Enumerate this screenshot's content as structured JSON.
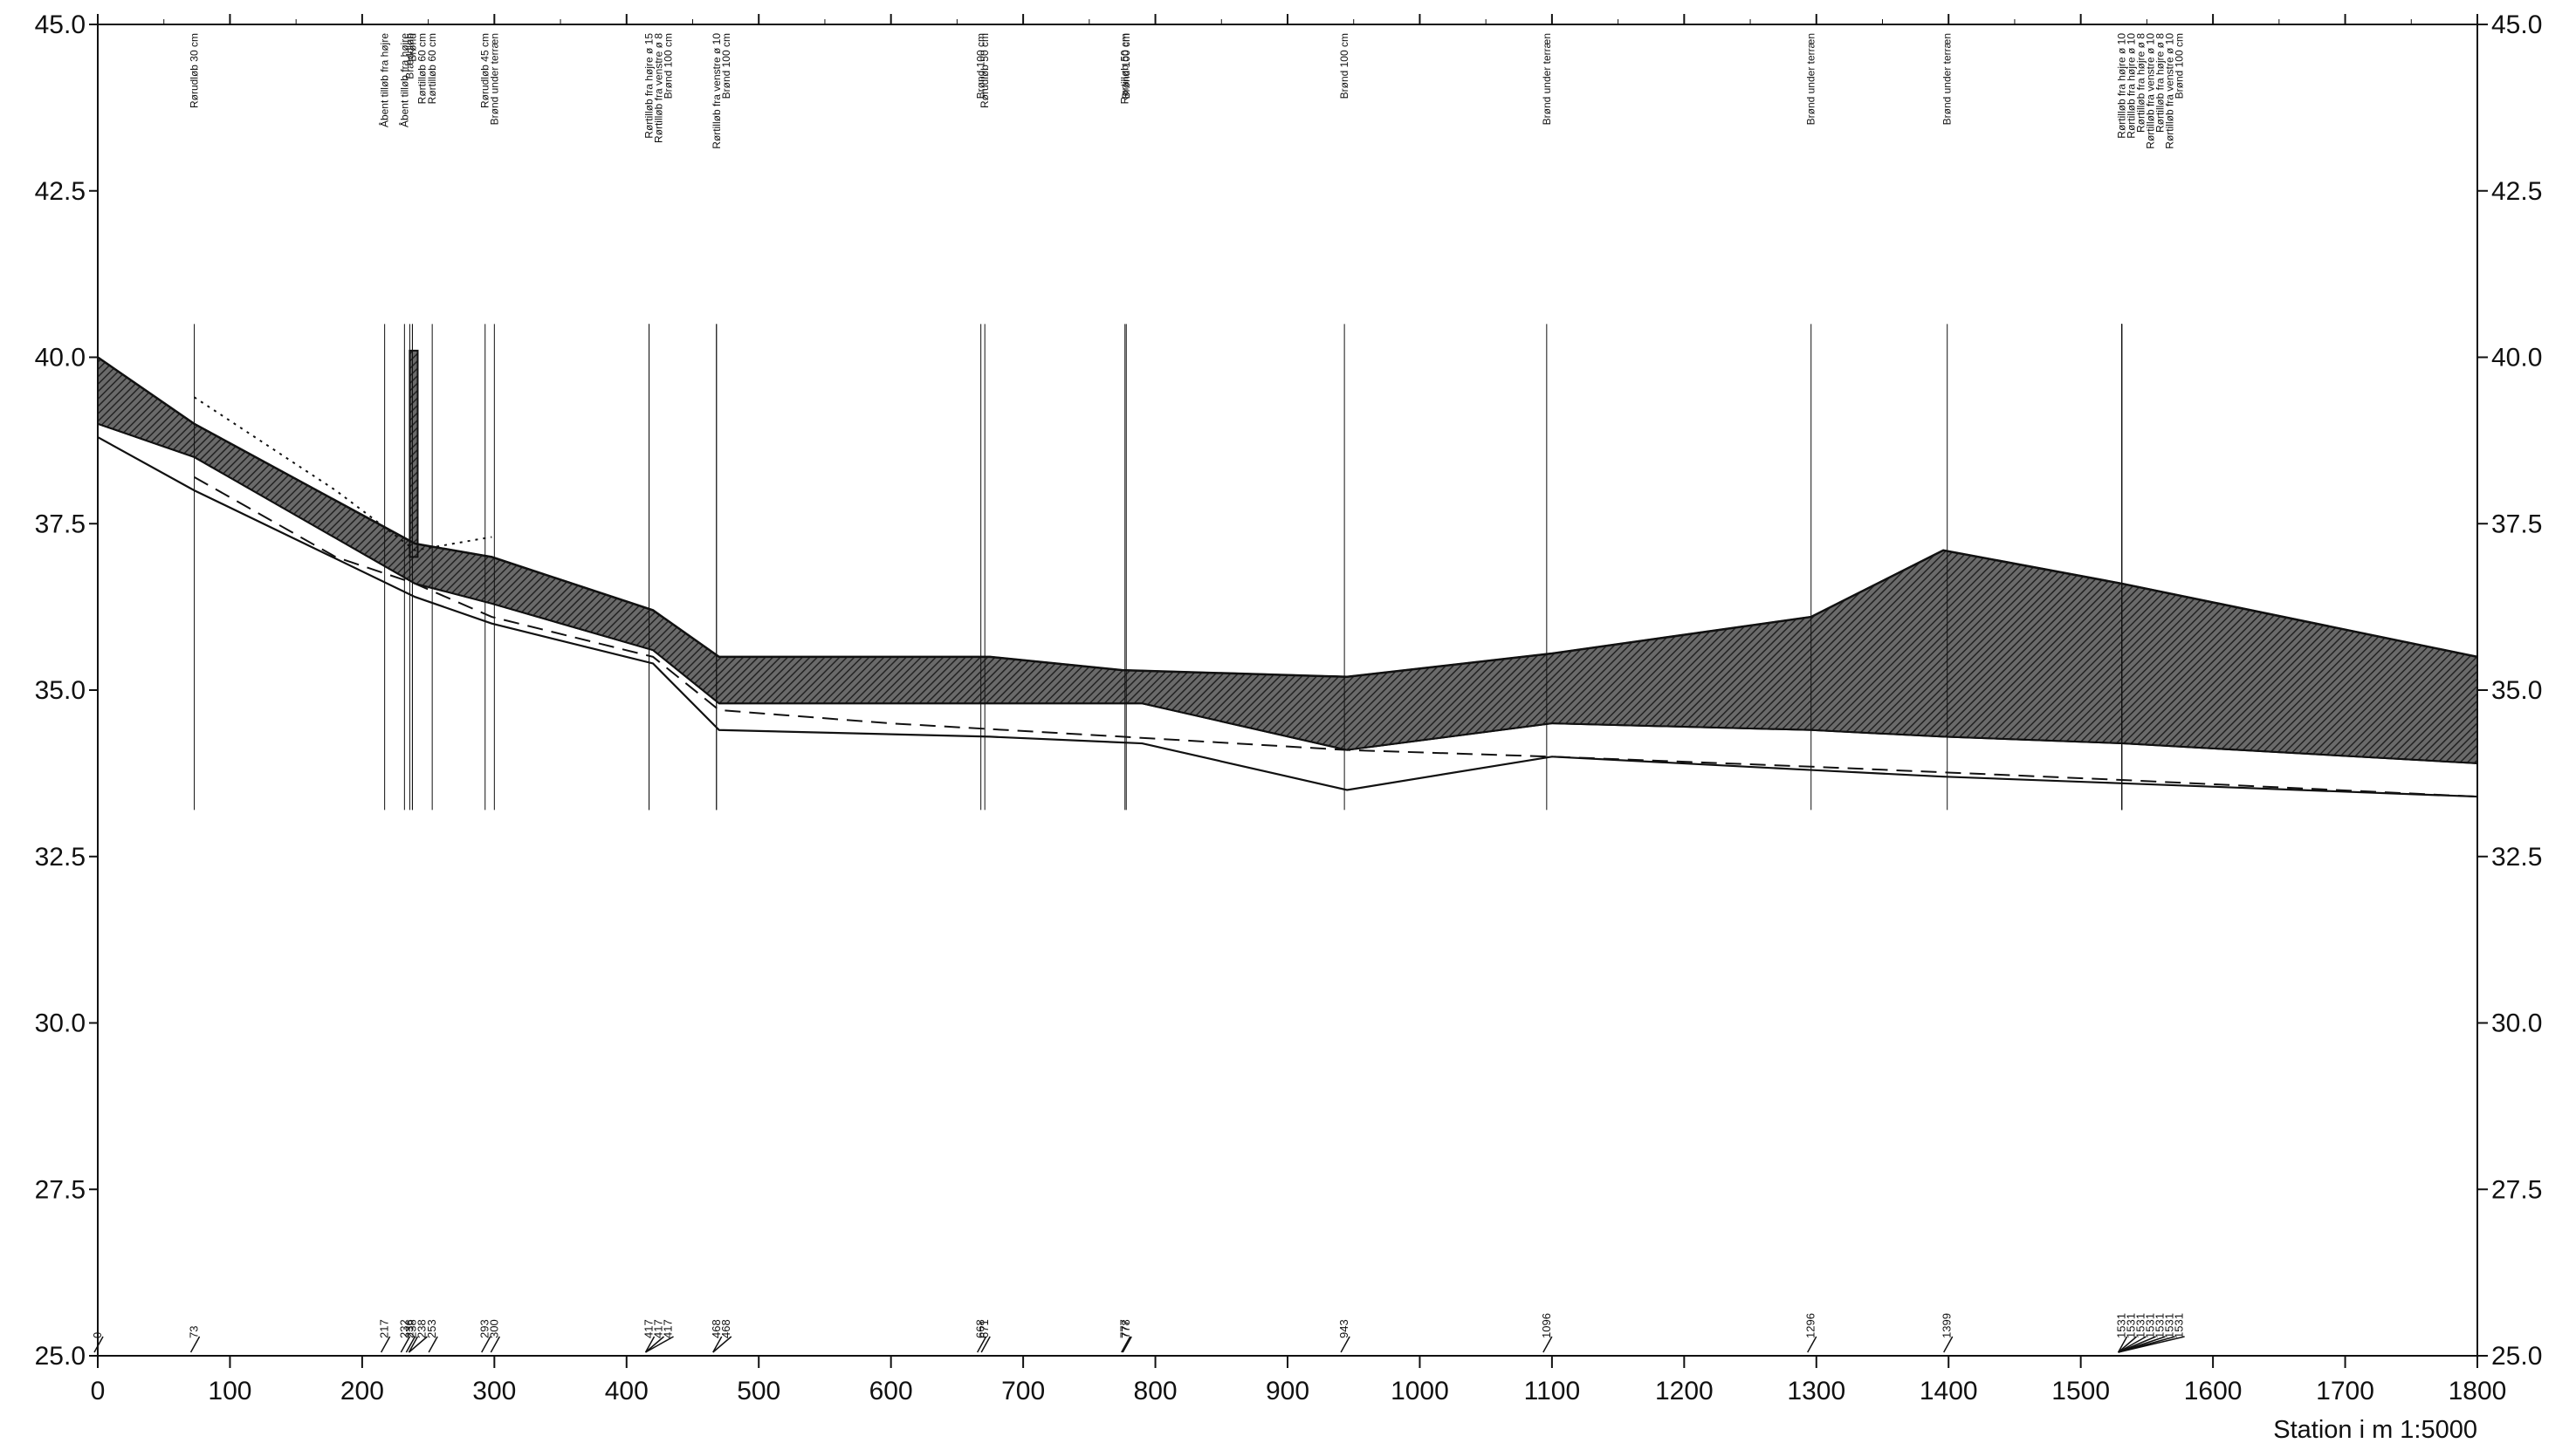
{
  "chart_data": {
    "type": "line",
    "xlabel": "Station i m  1:5000",
    "xlim": [
      0,
      1800
    ],
    "ylim": [
      25.0,
      45.0
    ],
    "x_ticks": [
      "0",
      "100",
      "200",
      "300",
      "400",
      "500",
      "600",
      "700",
      "800",
      "900",
      "1000",
      "1100",
      "1200",
      "1300",
      "1400",
      "1500",
      "1600",
      "1700",
      "1800"
    ],
    "y_ticks": [
      "25.0",
      "27.5",
      "30.0",
      "32.5",
      "35.0",
      "37.5",
      "40.0",
      "42.5",
      "45.0"
    ],
    "series": [
      {
        "style": "terrain-top",
        "points": [
          [
            0,
            40.0
          ],
          [
            73,
            39.0
          ],
          [
            73,
            39.0
          ],
          [
            240,
            37.2
          ],
          [
            240,
            37.2
          ],
          [
            298,
            37.0
          ],
          [
            298,
            37.0
          ],
          [
            420,
            36.2
          ],
          [
            470,
            35.5
          ],
          [
            675,
            35.5
          ],
          [
            675,
            35.5
          ],
          [
            775,
            35.3
          ],
          [
            945,
            35.2
          ],
          [
            1100,
            35.55
          ],
          [
            1296,
            36.1
          ],
          [
            1396,
            37.1
          ],
          [
            1531,
            36.6
          ],
          [
            1800,
            35.5
          ]
        ]
      },
      {
        "style": "pipe-top",
        "points": [
          [
            0,
            39.0
          ],
          [
            73,
            38.5
          ],
          [
            240,
            36.6
          ],
          [
            298,
            36.3
          ],
          [
            420,
            35.6
          ],
          [
            470,
            34.8
          ],
          [
            675,
            34.8
          ],
          [
            790,
            34.8
          ],
          [
            945,
            34.1
          ],
          [
            1100,
            34.5
          ],
          [
            1296,
            34.4
          ],
          [
            1396,
            34.3
          ],
          [
            1531,
            34.2
          ],
          [
            1800,
            33.9
          ]
        ]
      },
      {
        "style": "pipe-invert",
        "points": [
          [
            0,
            38.8
          ],
          [
            73,
            38.0
          ],
          [
            240,
            36.4
          ],
          [
            298,
            36.0
          ],
          [
            420,
            35.4
          ],
          [
            470,
            34.4
          ],
          [
            675,
            34.3
          ],
          [
            790,
            34.2
          ],
          [
            945,
            33.5
          ],
          [
            1100,
            34.0
          ],
          [
            1296,
            33.8
          ],
          [
            1396,
            33.7
          ],
          [
            1531,
            33.6
          ],
          [
            1800,
            33.4
          ]
        ]
      },
      {
        "style": "dashed",
        "points": [
          [
            73,
            38.2
          ],
          [
            180,
            37.0
          ],
          [
            240,
            36.6
          ],
          [
            298,
            36.1
          ],
          [
            420,
            35.5
          ],
          [
            470,
            34.7
          ],
          [
            600,
            34.5
          ],
          [
            775,
            34.3
          ],
          [
            945,
            34.1
          ],
          [
            1100,
            34.0
          ],
          [
            1296,
            33.85
          ],
          [
            1531,
            33.65
          ],
          [
            1800,
            33.4
          ]
        ]
      },
      {
        "style": "dotted",
        "points": [
          [
            73,
            39.4
          ],
          [
            180,
            38.0
          ],
          [
            240,
            37.1
          ],
          [
            298,
            37.3
          ]
        ]
      }
    ],
    "manholes": [
      {
        "station": 0,
        "label": "0",
        "desc": ""
      },
      {
        "station": 73,
        "label": "73",
        "desc": "Rørudløb 30 cm"
      },
      {
        "station": 217,
        "label": "217",
        "desc": "Åbent tilløb fra højre"
      },
      {
        "station": 232,
        "label": "232",
        "desc": "Åbent tilløb fra højre"
      },
      {
        "station": 236,
        "label": "236",
        "desc": "Bræddløb"
      },
      {
        "station": 238,
        "label": "238",
        "desc": "Brønd"
      },
      {
        "station": 238,
        "label": "238",
        "desc": "Rørtilløb 60 cm"
      },
      {
        "station": 253,
        "label": "253",
        "desc": "Rørtilløb 60 cm"
      },
      {
        "station": 293,
        "label": "293",
        "desc": "Rørudløb 45 cm"
      },
      {
        "station": 300,
        "label": "300",
        "desc": "Brønd under terræn"
      },
      {
        "station": 417,
        "label": "417",
        "desc": "Rørtilløb fra højre ø 15"
      },
      {
        "station": 417,
        "label": "417",
        "desc": "Rørtilløb fra venstre ø 8"
      },
      {
        "station": 417,
        "label": "417",
        "desc": "Brønd 100 cm"
      },
      {
        "station": 468,
        "label": "468",
        "desc": "Rørtilløb fra venstre ø 10"
      },
      {
        "station": 468,
        "label": "468",
        "desc": "Brønd 100 cm"
      },
      {
        "station": 668,
        "label": "668",
        "desc": "Brønd 100 cm"
      },
      {
        "station": 671,
        "label": "671",
        "desc": "Rørudløb 50 cm"
      },
      {
        "station": 777,
        "label": "777",
        "desc": "Rørtilløb 50 cm"
      },
      {
        "station": 778,
        "label": "778",
        "desc": "Brønd 100 cm"
      },
      {
        "station": 943,
        "label": "943",
        "desc": "Brønd 100 cm"
      },
      {
        "station": 1096,
        "label": "1096",
        "desc": "Brønd under terræn"
      },
      {
        "station": 1296,
        "label": "1296",
        "desc": "Brønd under terræn"
      },
      {
        "station": 1399,
        "label": "1399",
        "desc": "Brønd under terræn"
      },
      {
        "station": 1531,
        "label": "1531",
        "desc": "Rørtilløb fra højre ø 10"
      },
      {
        "station": 1531,
        "label": "1531",
        "desc": "Rørtilløb fra højre ø 10"
      },
      {
        "station": 1531,
        "label": "1531",
        "desc": "Rørtilløb fra højre ø 8"
      },
      {
        "station": 1531,
        "label": "1531",
        "desc": "Rørtilløb fra venstre ø 10"
      },
      {
        "station": 1531,
        "label": "1531",
        "desc": "Rørtilløb fra højre ø 8"
      },
      {
        "station": 1531,
        "label": "1531",
        "desc": "Rørtilløb fra venstre ø 10"
      },
      {
        "station": 1531,
        "label": "1531",
        "desc": "Brønd 100 cm"
      }
    ]
  }
}
